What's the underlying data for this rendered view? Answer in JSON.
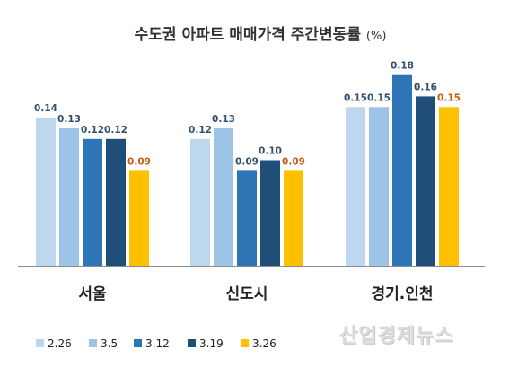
{
  "chart_data": {
    "type": "bar",
    "title": "수도권 아파트 매매가격 주간변동률",
    "title_unit": "(%)",
    "categories": [
      "서울",
      "신도시",
      "경기.인천"
    ],
    "series": [
      {
        "name": "2.26",
        "values": [
          0.14,
          0.12,
          0.15
        ],
        "color": "#bdd7ee",
        "label_color": "#2f4f6f"
      },
      {
        "name": "3.5",
        "values": [
          0.13,
          0.13,
          0.15
        ],
        "color": "#9dc3e6",
        "label_color": "#2f4f6f"
      },
      {
        "name": "3.12",
        "values": [
          0.12,
          0.09,
          0.18
        ],
        "color": "#2e75b6",
        "label_color": "#2f4f6f"
      },
      {
        "name": "3.19",
        "values": [
          0.12,
          0.1,
          0.16
        ],
        "color": "#1f4e79",
        "label_color": "#2f4f6f"
      },
      {
        "name": "3.26",
        "values": [
          0.09,
          0.09,
          0.15
        ],
        "color": "#ffc000",
        "label_color": "#c55a11"
      }
    ],
    "ylim": [
      0,
      0.2
    ],
    "grid": false,
    "legend_position": "bottom-left"
  },
  "watermark": "산업경제뉴스"
}
